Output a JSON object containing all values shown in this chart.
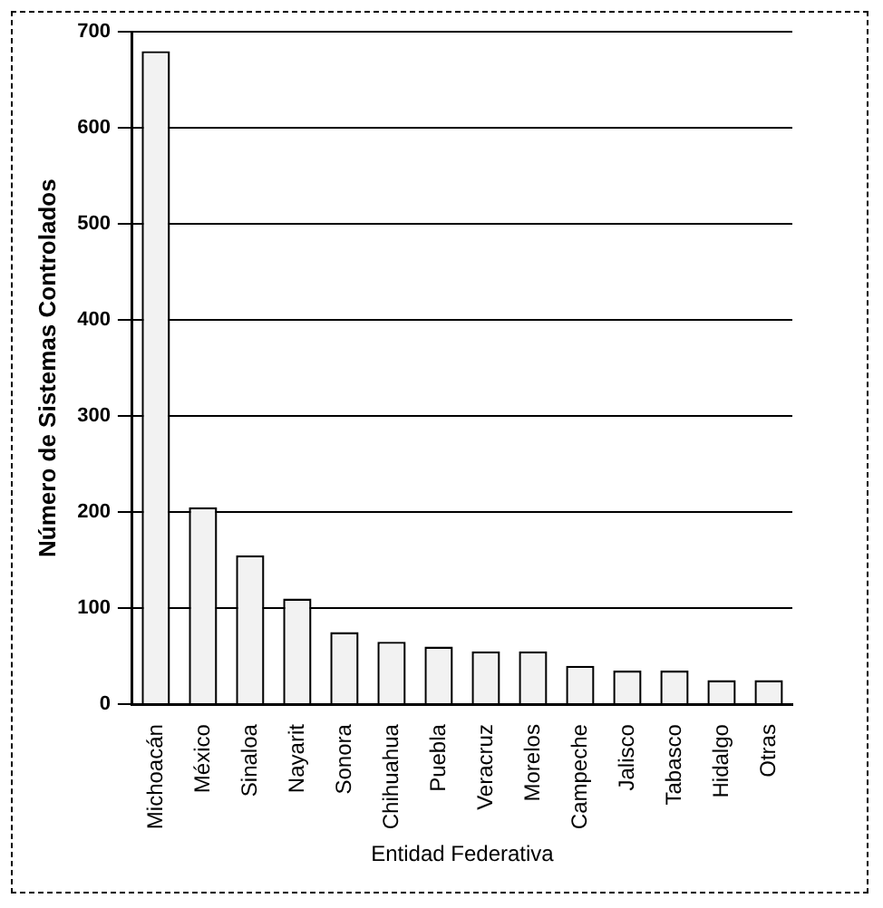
{
  "chart_data": {
    "type": "bar",
    "xlabel": "Entidad Federativa",
    "ylabel": "Número de Sistemas Controlados",
    "categories": [
      "Michoacán",
      "México",
      "Sinaloa",
      "Nayarit",
      "Sonora",
      "Chihuahua",
      "Puebla",
      "Veracruz",
      "Morelos",
      "Campeche",
      "Jalisco",
      "Tabasco",
      "Hidalgo",
      "Otras"
    ],
    "values": [
      680,
      205,
      155,
      110,
      75,
      65,
      60,
      55,
      55,
      40,
      35,
      35,
      25,
      25
    ],
    "color": "#f2f2f2",
    "ylim": [
      0,
      700
    ],
    "yticks": [
      0,
      100,
      200,
      300,
      400,
      500,
      600,
      700
    ],
    "grid": "y",
    "legend": false
  }
}
